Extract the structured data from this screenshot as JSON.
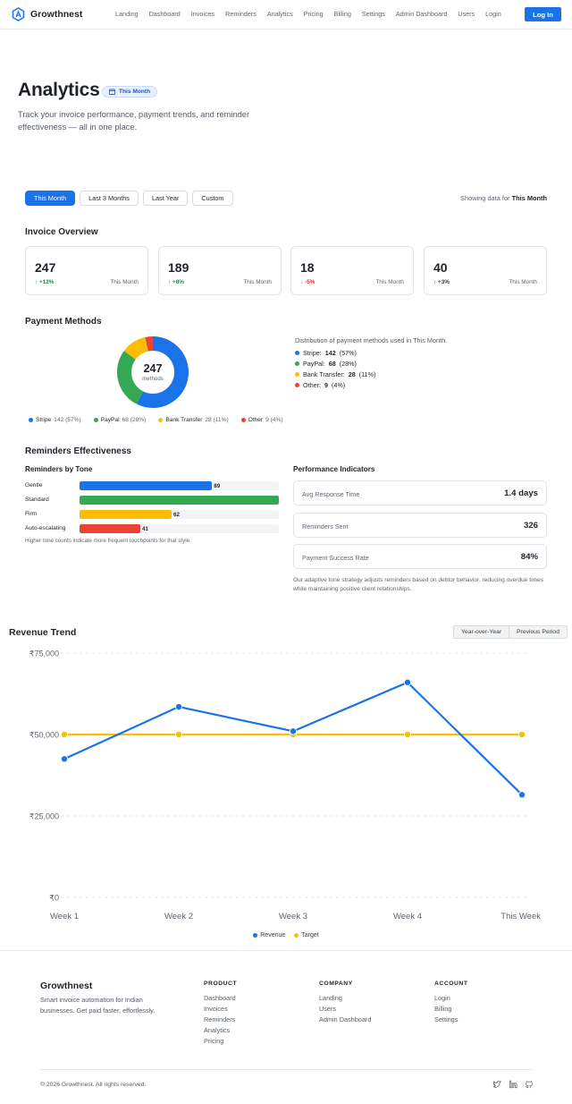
{
  "nav": {
    "brand": "Growthnest",
    "links": [
      "Landing",
      "Dashboard",
      "Invoices",
      "Reminders",
      "Analytics",
      "Pricing",
      "Billing",
      "Settings",
      "Admin Dashboard",
      "Users",
      "Login"
    ],
    "login_label": "Log In"
  },
  "hero": {
    "title": "Analytics",
    "badge": "This Month",
    "subtitle": "Track your invoice performance, payment trends, and reminder effectiveness — all in one place."
  },
  "filters": {
    "options": [
      "This Month",
      "Last 3 Months",
      "Last Year",
      "Custom"
    ],
    "active": "This Month",
    "showing_prefix": "Showing data for",
    "showing_value": "This Month"
  },
  "invoice_overview": {
    "title": "Invoice Overview",
    "cards": [
      {
        "value": "247",
        "change": "↑ +12%",
        "trend": "up",
        "period": "This Month"
      },
      {
        "value": "189",
        "change": "↑ +8%",
        "trend": "up",
        "period": "This Month"
      },
      {
        "value": "18",
        "change": "↓ -5%",
        "trend": "down",
        "period": "This Month"
      },
      {
        "value": "40",
        "change": "↑ +3%",
        "trend": "neutral",
        "period": "This Month"
      }
    ]
  },
  "payment_methods": {
    "title": "Payment Methods",
    "total": "247",
    "total_label": "methods",
    "description": "Distribution of payment methods used in This Month.",
    "methods": [
      {
        "name": "Stripe",
        "count": 142,
        "pct": "57%",
        "color": "#1a73e8"
      },
      {
        "name": "PayPal",
        "count": 68,
        "pct": "28%",
        "color": "#34a853"
      },
      {
        "name": "Bank Transfer",
        "count": 28,
        "pct": "11%",
        "color": "#fbbc04"
      },
      {
        "name": "Other",
        "count": 9,
        "pct": "4%",
        "color": "#ea4335"
      }
    ]
  },
  "reminders": {
    "title": "Reminders Effectiveness",
    "by_tone_title": "Reminders by Tone",
    "tones": [
      {
        "name": "Gentle",
        "value": 89,
        "fill": 0.665,
        "color": "#1a73e8",
        "show_value": true
      },
      {
        "name": "Standard",
        "value": 134,
        "fill": 1.0,
        "color": "#34a853",
        "show_value": false
      },
      {
        "name": "Firm",
        "value": 62,
        "fill": 0.462,
        "color": "#fbbc04",
        "show_value": true
      },
      {
        "name": "Auto-escalating",
        "value": 41,
        "fill": 0.305,
        "color": "#ea4335",
        "show_value": true
      }
    ],
    "note": "Higher tone counts indicate more frequent touchpoints for that style.",
    "perf_title": "Performance Indicators",
    "indicators": [
      {
        "label": "Avg Response Time",
        "value": "1.4 days"
      },
      {
        "label": "Reminders Sent",
        "value": "326"
      },
      {
        "label": "Payment Success Rate",
        "value": "84%"
      }
    ],
    "perf_note": "Our adaptive tone strategy adjusts reminders based on debtor behavior, reducing overdue times while maintaining positive client relationships."
  },
  "revenue": {
    "title": "Revenue Trend",
    "buttons": [
      "Year-over-Year",
      "Previous Period"
    ]
  },
  "chart_data": {
    "type": "line",
    "categories": [
      "Week 1",
      "Week 2",
      "Week 3",
      "Week 4",
      "This Week"
    ],
    "series": [
      {
        "name": "Revenue",
        "values": [
          42500,
          58500,
          51000,
          66000,
          31500
        ],
        "color": "#1a73e8"
      },
      {
        "name": "Target",
        "values": [
          50000,
          50000,
          50000,
          50000,
          50000
        ],
        "color": "#fbbc04"
      }
    ],
    "ylim": [
      0,
      75000
    ],
    "yticks": [
      0,
      25000,
      50000,
      75000
    ],
    "ytick_labels": [
      "₹0",
      "₹25,000",
      "₹50,000",
      "₹75,000"
    ],
    "grid": true,
    "legend": "bottom-center",
    "title": "",
    "xlabel": "",
    "ylabel": ""
  },
  "footer": {
    "brand": "Growthnest",
    "description": "Smart invoice automation for Indian businesses. Get paid faster, effortlessly.",
    "columns": [
      {
        "heading": "PRODUCT",
        "links": [
          "Dashboard",
          "Invoices",
          "Reminders",
          "Analytics",
          "Pricing"
        ]
      },
      {
        "heading": "COMPANY",
        "links": [
          "Landing",
          "Users",
          "Admin Dashboard"
        ]
      },
      {
        "heading": "ACCOUNT",
        "links": [
          "Login",
          "Billing",
          "Settings"
        ]
      }
    ],
    "copyright": "© 2026 Growthnest. All rights reserved.",
    "socials": [
      "twitter-icon",
      "linkedin-icon",
      "github-icon"
    ]
  }
}
